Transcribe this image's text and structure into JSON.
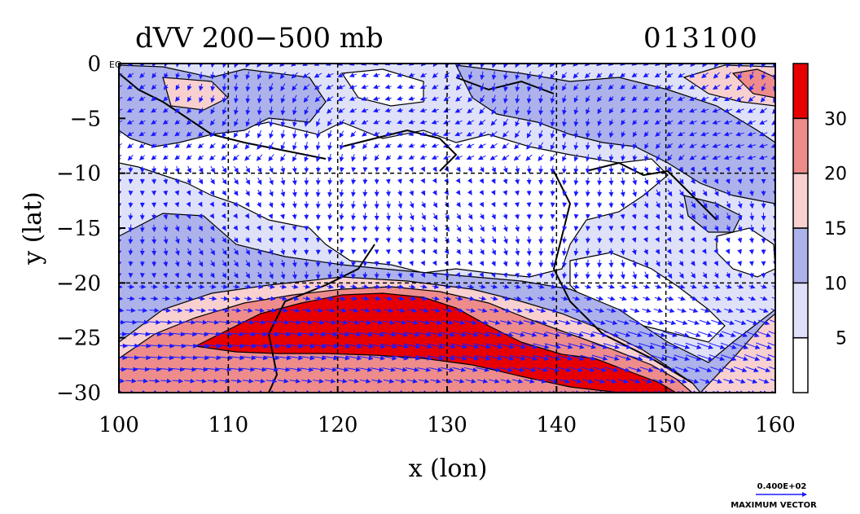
{
  "chart_data": {
    "type": "heatmap",
    "title": "dVV 200−500 mb",
    "timestamp": "013100",
    "xlabel": "x (lon)",
    "ylabel": "y (lat)",
    "xlim": [
      100,
      160
    ],
    "ylim": [
      -30,
      0
    ],
    "x_ticks": [
      {
        "value": 100,
        "label": "100"
      },
      {
        "value": 110,
        "label": "110"
      },
      {
        "value": 120,
        "label": "120"
      },
      {
        "value": 130,
        "label": "130"
      },
      {
        "value": 140,
        "label": "140"
      },
      {
        "value": 150,
        "label": "150"
      },
      {
        "value": 160,
        "label": "160"
      }
    ],
    "y_ticks": [
      {
        "value": 0,
        "label": "0"
      },
      {
        "value": -5,
        "label": "−5"
      },
      {
        "value": -10,
        "label": "−10"
      },
      {
        "value": -15,
        "label": "−15"
      },
      {
        "value": -20,
        "label": "−20"
      },
      {
        "value": -25,
        "label": "−25"
      },
      {
        "value": -30,
        "label": "−30"
      }
    ],
    "grid": "dashed, every 10° lon and 5° lat",
    "equator_label": "EQ",
    "colorbar": {
      "placement": "right",
      "bands": [
        {
          "label": "",
          "color": "#ffffff"
        },
        {
          "label": "5",
          "color": "#dfe1f8"
        },
        {
          "label": "10",
          "color": "#adb2ea"
        },
        {
          "label": "15",
          "color": "#f8d0d0"
        },
        {
          "label": "20",
          "color": "#ee8c8c"
        },
        {
          "label": "30",
          "color": "#e80000"
        }
      ]
    },
    "vector_key": {
      "value_label": "0.400E+02",
      "caption": "MAXIMUM VECTOR",
      "color": "#1a1aff"
    },
    "fields": {
      "jet_core": {
        "level": "30+",
        "lon_range": [
          107,
          152
        ],
        "lat_center": -26
      },
      "background_level": "5-10 over the tropics"
    }
  }
}
